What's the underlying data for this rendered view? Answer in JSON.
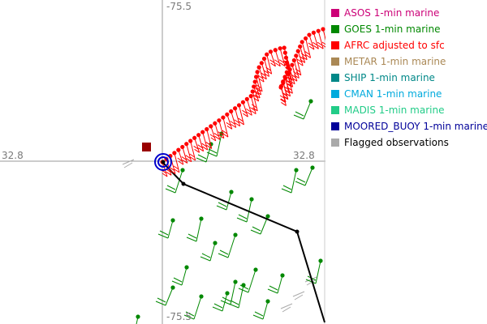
{
  "map": {
    "axis_labels": {
      "top": "-75.5",
      "bottom": "-75.5",
      "left": "32.8",
      "right": "32.8"
    },
    "colors": {
      "afrc_track": "#ff0000",
      "goes_barbs": "#008800",
      "buoy_track": "#000000",
      "station_marker": "#990000",
      "flagged": "#aaaaaa",
      "center_ring": "#0000cc",
      "crosshair": "#999999"
    }
  },
  "legend": {
    "items": [
      {
        "label": "ASOS 1-min marine",
        "color": "#cc0077"
      },
      {
        "label": "GOES 1-min marine",
        "color": "#008800"
      },
      {
        "label": "AFRC adjusted to sfc",
        "color": "#ff0000"
      },
      {
        "label": "METAR 1-min marine",
        "color": "#aa8855"
      },
      {
        "label": "SHIP 1-min marine",
        "color": "#008888"
      },
      {
        "label": "CMAN 1-min marine",
        "color": "#00aadd"
      },
      {
        "label": "MADIS 1-min marine",
        "color": "#22cc88"
      },
      {
        "label": "MOORED_BUOY 1-min marine",
        "color": "#000099"
      },
      {
        "label": "Flagged observations",
        "color": "#aaaaaa"
      }
    ]
  }
}
